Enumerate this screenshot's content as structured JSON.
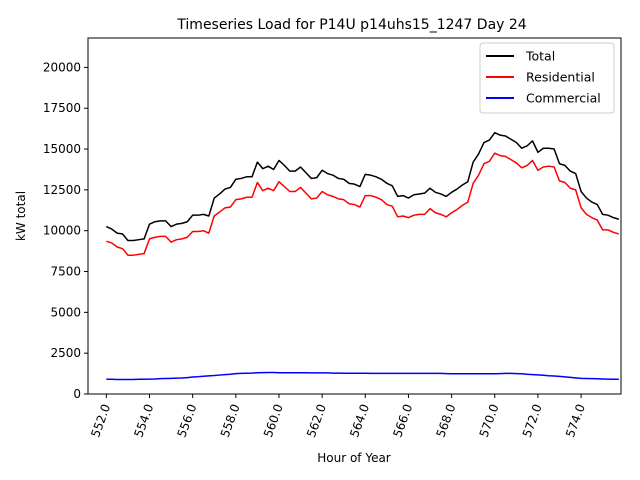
{
  "chart_data": {
    "type": "line",
    "title": "Timeseries Load for P14U p14uhs15_1247  Day 24",
    "xlabel": "Hour of Year",
    "ylabel": "kW total",
    "xlim": [
      551.15,
      575.85
    ],
    "ylim": [
      0,
      21800
    ],
    "x_ticks": [
      552,
      554,
      556,
      558,
      560,
      562,
      564,
      566,
      568,
      570,
      572,
      574
    ],
    "x_tick_labels": [
      "552.0",
      "554.0",
      "556.0",
      "558.0",
      "560.0",
      "562.0",
      "564.0",
      "566.0",
      "568.0",
      "570.0",
      "572.0",
      "574.0"
    ],
    "y_ticks": [
      0,
      2500,
      5000,
      7500,
      10000,
      12500,
      15000,
      17500,
      20000
    ],
    "y_tick_labels": [
      "0",
      "2500",
      "5000",
      "7500",
      "10000",
      "12500",
      "15000",
      "17500",
      "20000"
    ],
    "legend_position": "top-right",
    "x": [
      552.0,
      552.25,
      552.5,
      552.75,
      553.0,
      553.25,
      553.5,
      553.75,
      554.0,
      554.25,
      554.5,
      554.75,
      555.0,
      555.25,
      555.5,
      555.75,
      556.0,
      556.25,
      556.5,
      556.75,
      557.0,
      557.25,
      557.5,
      557.75,
      558.0,
      558.25,
      558.5,
      558.75,
      559.0,
      559.25,
      559.5,
      559.75,
      560.0,
      560.25,
      560.5,
      560.75,
      561.0,
      561.25,
      561.5,
      561.75,
      562.0,
      562.25,
      562.5,
      562.75,
      563.0,
      563.25,
      563.5,
      563.75,
      564.0,
      564.25,
      564.5,
      564.75,
      565.0,
      565.25,
      565.5,
      565.75,
      566.0,
      566.25,
      566.5,
      566.75,
      567.0,
      567.25,
      567.5,
      567.75,
      568.0,
      568.25,
      568.5,
      568.75,
      569.0,
      569.25,
      569.5,
      569.75,
      570.0,
      570.25,
      570.5,
      570.75,
      571.0,
      571.25,
      571.5,
      571.75,
      572.0,
      572.25,
      572.5,
      572.75,
      573.0,
      573.25,
      573.5,
      573.75,
      574.0,
      574.25,
      574.5,
      574.75,
      575.0,
      575.25,
      575.5,
      575.75
    ],
    "series": [
      {
        "name": "Total",
        "color": "#000000",
        "values": [
          10250,
          10100,
          9850,
          9800,
          9400,
          9400,
          9450,
          9500,
          10400,
          10550,
          10600,
          10600,
          10250,
          10400,
          10450,
          10550,
          10950,
          10950,
          11000,
          10900,
          12000,
          12250,
          12550,
          12650,
          13150,
          13200,
          13300,
          13300,
          14200,
          13800,
          13950,
          13750,
          14300,
          14000,
          13650,
          13650,
          13900,
          13550,
          13200,
          13250,
          13700,
          13500,
          13400,
          13200,
          13150,
          12900,
          12850,
          12700,
          13450,
          13400,
          13300,
          13150,
          12900,
          12750,
          12100,
          12150,
          12000,
          12200,
          12250,
          12300,
          12600,
          12350,
          12250,
          12100,
          12350,
          12550,
          12800,
          13000,
          14200,
          14700,
          15400,
          15550,
          16000,
          15850,
          15800,
          15600,
          15400,
          15050,
          15200,
          15500,
          14800,
          15050,
          15050,
          15000,
          14100,
          14000,
          13650,
          13500,
          12400,
          12000,
          11750,
          11600,
          11000,
          10950,
          10800,
          10700
        ]
      },
      {
        "name": "Residential",
        "color": "#ff0000",
        "values": [
          9350,
          9250,
          9000,
          8900,
          8500,
          8500,
          8550,
          8600,
          9500,
          9600,
          9650,
          9650,
          9300,
          9450,
          9500,
          9600,
          9950,
          9950,
          10000,
          9850,
          10900,
          11150,
          11400,
          11450,
          11900,
          11950,
          12050,
          12050,
          12950,
          12450,
          12600,
          12450,
          13000,
          12700,
          12400,
          12400,
          12650,
          12300,
          11950,
          12000,
          12400,
          12200,
          12100,
          11950,
          11900,
          11650,
          11600,
          11450,
          12150,
          12150,
          12050,
          11900,
          11600,
          11500,
          10850,
          10900,
          10800,
          10950,
          11000,
          11000,
          11350,
          11100,
          11000,
          10850,
          11100,
          11300,
          11550,
          11750,
          12900,
          13400,
          14100,
          14250,
          14750,
          14600,
          14550,
          14350,
          14150,
          13850,
          14000,
          14300,
          13700,
          13900,
          13950,
          13900,
          13050,
          12950,
          12600,
          12500,
          11400,
          11000,
          10800,
          10650,
          10050,
          10050,
          9900,
          9800
        ]
      },
      {
        "name": "Commercial",
        "color": "#0000ff",
        "values": [
          900,
          900,
          890,
          890,
          890,
          890,
          900,
          900,
          910,
          920,
          940,
          950,
          960,
          970,
          980,
          1000,
          1040,
          1060,
          1090,
          1110,
          1130,
          1160,
          1190,
          1210,
          1250,
          1260,
          1270,
          1280,
          1300,
          1310,
          1320,
          1320,
          1300,
          1300,
          1300,
          1300,
          1300,
          1300,
          1290,
          1290,
          1290,
          1290,
          1280,
          1280,
          1270,
          1270,
          1270,
          1270,
          1270,
          1260,
          1260,
          1260,
          1260,
          1260,
          1260,
          1260,
          1260,
          1260,
          1260,
          1260,
          1260,
          1260,
          1260,
          1250,
          1240,
          1240,
          1240,
          1240,
          1240,
          1240,
          1240,
          1240,
          1240,
          1250,
          1260,
          1260,
          1250,
          1240,
          1210,
          1190,
          1170,
          1150,
          1120,
          1100,
          1080,
          1050,
          1020,
          990,
          960,
          950,
          940,
          930,
          920,
          910,
          900,
          900
        ]
      }
    ]
  }
}
